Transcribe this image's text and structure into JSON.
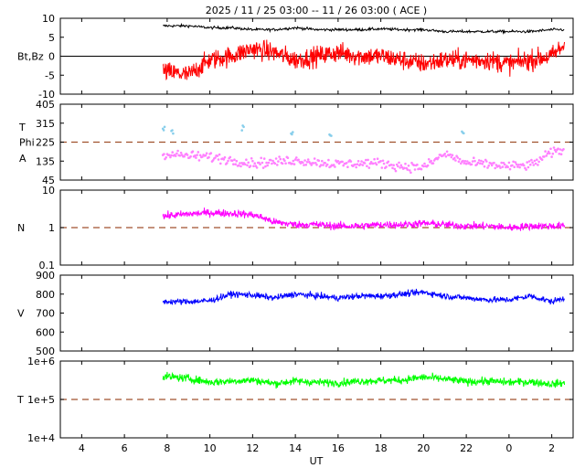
{
  "title": "2025 / 11 / 25   03:00 -- 11 / 26   03:00 ( ACE )",
  "xlabel": "UT",
  "x_ticks": [
    "4",
    "6",
    "8",
    "10",
    "12",
    "14",
    "16",
    "18",
    "20",
    "22",
    "0",
    "2"
  ],
  "colors": {
    "bt": "#000000",
    "bz": "#ff0000",
    "theta": "#87ceeb",
    "phi": "#ff80ff",
    "density": "#ff00ff",
    "speed": "#0000ff",
    "temperature": "#00ff00",
    "reference_dash": "#a0522d"
  },
  "chart_data": [
    {
      "type": "line",
      "panel": "magnetic-field",
      "ylabel_lines": [
        "Bt,Bz"
      ],
      "ylim": [
        -10,
        10
      ],
      "y_ticks": [
        "10",
        "5",
        "0",
        "-5",
        "-10"
      ],
      "reference_line": 0,
      "x_range_hours": [
        3,
        27
      ],
      "data_start_hour": 7.8,
      "series": [
        {
          "key": "bt",
          "x": [
            7.8,
            9,
            10,
            11,
            12,
            13,
            14,
            15,
            16,
            17,
            18,
            19,
            20,
            21,
            22,
            23,
            24,
            25,
            26,
            26.6
          ],
          "values": [
            8,
            8,
            7.5,
            7.5,
            7,
            7,
            7.5,
            7,
            7,
            7,
            7.2,
            7,
            7,
            6.5,
            6.5,
            6.5,
            6.5,
            6.5,
            7,
            7
          ]
        },
        {
          "key": "bz",
          "x": [
            7.8,
            9,
            10,
            11,
            12,
            13,
            14,
            15,
            16,
            17,
            18,
            19,
            20,
            21,
            22,
            23,
            24,
            25,
            26,
            26.6
          ],
          "values": [
            -4,
            -5,
            -1,
            0,
            2,
            1,
            -1,
            0,
            1,
            0,
            0,
            -1,
            -2,
            -1,
            -1,
            -1,
            -2,
            -1,
            0,
            3
          ]
        }
      ]
    },
    {
      "type": "scatter",
      "panel": "angles",
      "ylabel_lines": [
        "T",
        "Phi",
        "A"
      ],
      "ylim": [
        45,
        405
      ],
      "y_ticks": [
        "405",
        "315",
        "225",
        "135",
        "45"
      ],
      "reference_line": 225,
      "x_range_hours": [
        3,
        27
      ],
      "series": [
        {
          "key": "phi",
          "x": [
            7.8,
            9,
            10,
            11,
            12,
            13,
            14,
            15,
            16,
            17,
            18,
            19,
            20,
            21,
            22,
            23,
            24,
            25,
            26,
            26.6
          ],
          "values": [
            170,
            160,
            155,
            140,
            125,
            130,
            140,
            130,
            120,
            125,
            125,
            110,
            105,
            170,
            125,
            120,
            110,
            115,
            175,
            190
          ]
        },
        {
          "key": "theta",
          "x": [
            7.8,
            8.2,
            11.5,
            13.8,
            15.6,
            21.8
          ],
          "values": [
            290,
            270,
            300,
            270,
            260,
            280
          ]
        }
      ]
    },
    {
      "type": "line",
      "panel": "density",
      "ylabel_lines": [
        "N"
      ],
      "yscale": "log",
      "ylim": [
        0.1,
        10
      ],
      "y_ticks": [
        "10",
        "1",
        "0.1"
      ],
      "reference_line": 1,
      "x_range_hours": [
        3,
        27
      ],
      "series": [
        {
          "key": "density",
          "x": [
            7.8,
            9,
            10,
            11,
            12,
            13,
            14,
            15,
            16,
            17,
            18,
            19,
            20,
            21,
            22,
            23,
            24,
            25,
            26,
            26.6
          ],
          "values": [
            2.0,
            2.3,
            2.5,
            2.4,
            2.2,
            1.4,
            1.2,
            1.2,
            1.1,
            1.1,
            1.2,
            1.2,
            1.3,
            1.2,
            1.1,
            1.1,
            1.0,
            1.1,
            1.1,
            1.1
          ]
        }
      ]
    },
    {
      "type": "line",
      "panel": "speed",
      "ylabel_lines": [
        "V"
      ],
      "ylim": [
        500,
        900
      ],
      "y_ticks": [
        "900",
        "800",
        "700",
        "600",
        "500"
      ],
      "x_range_hours": [
        3,
        27
      ],
      "series": [
        {
          "key": "speed",
          "x": [
            7.8,
            9,
            10,
            11,
            12,
            13,
            14,
            15,
            16,
            17,
            18,
            19,
            20,
            21,
            22,
            23,
            24,
            25,
            26,
            26.6
          ],
          "values": [
            760,
            760,
            765,
            800,
            795,
            780,
            800,
            790,
            780,
            790,
            790,
            800,
            810,
            790,
            780,
            770,
            770,
            790,
            760,
            780
          ]
        }
      ]
    },
    {
      "type": "line",
      "panel": "temperature",
      "ylabel_lines": [
        "T"
      ],
      "yscale": "log",
      "ylim": [
        10000,
        1000000
      ],
      "y_ticks": [
        "1e+6",
        "1e+5",
        "1e+4"
      ],
      "reference_line": 100000,
      "x_range_hours": [
        3,
        27
      ],
      "series": [
        {
          "key": "temperature",
          "x": [
            7.8,
            9,
            10,
            11,
            12,
            13,
            14,
            15,
            16,
            17,
            18,
            19,
            20,
            21,
            22,
            23,
            24,
            25,
            26,
            26.6
          ],
          "values": [
            400000,
            350000,
            280000,
            300000,
            320000,
            260000,
            300000,
            280000,
            270000,
            300000,
            310000,
            320000,
            380000,
            340000,
            290000,
            300000,
            280000,
            290000,
            250000,
            270000
          ]
        }
      ]
    }
  ]
}
